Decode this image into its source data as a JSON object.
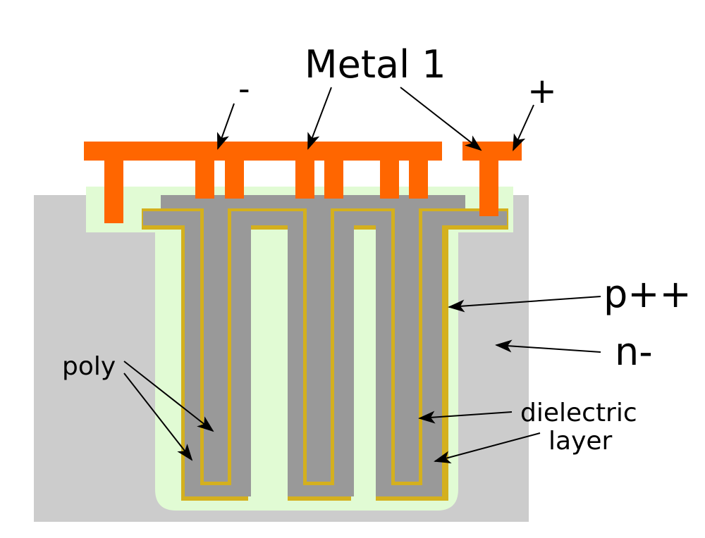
{
  "labels": {
    "metal1": "Metal 1",
    "minus": "-",
    "plus": "+",
    "p_plus_plus": "p++",
    "n_minus": "n-",
    "poly": "poly",
    "dielectric_line1": "dielectric",
    "dielectric_line2": "layer"
  },
  "colors": {
    "background": "#ffffff",
    "substrate_n": "#cccccc",
    "p_region": "#e1fbd4",
    "poly": "#999999",
    "dielectric": "#d4b01e",
    "metal": "#ff6600",
    "arrow": "#000000"
  }
}
